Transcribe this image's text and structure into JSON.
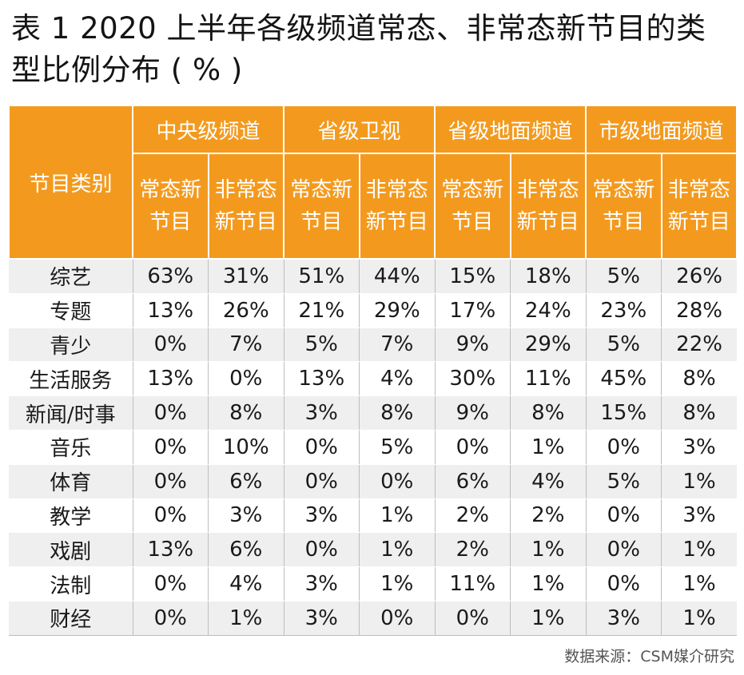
{
  "title": "表 1  2020 上半年各级频道常态、非常态新节目的类型比例分布 ( % )",
  "table": {
    "category_header": "节目类别",
    "groups": [
      "中央级频道",
      "省级卫视",
      "省级地面频道",
      "市级地面频道"
    ],
    "sub_headers": [
      "常态新节目",
      "非常态新节目"
    ],
    "rows": [
      {
        "category": "综艺",
        "values": [
          "63%",
          "31%",
          "51%",
          "44%",
          "15%",
          "18%",
          "5%",
          "26%"
        ]
      },
      {
        "category": "专题",
        "values": [
          "13%",
          "26%",
          "21%",
          "29%",
          "17%",
          "24%",
          "23%",
          "28%"
        ]
      },
      {
        "category": "青少",
        "values": [
          "0%",
          "7%",
          "5%",
          "7%",
          "9%",
          "29%",
          "5%",
          "22%"
        ]
      },
      {
        "category": "生活服务",
        "values": [
          "13%",
          "0%",
          "13%",
          "4%",
          "30%",
          "11%",
          "45%",
          "8%"
        ]
      },
      {
        "category": "新闻/时事",
        "values": [
          "0%",
          "8%",
          "3%",
          "8%",
          "9%",
          "8%",
          "15%",
          "8%"
        ]
      },
      {
        "category": "音乐",
        "values": [
          "0%",
          "10%",
          "0%",
          "5%",
          "0%",
          "1%",
          "0%",
          "3%"
        ]
      },
      {
        "category": "体育",
        "values": [
          "0%",
          "6%",
          "0%",
          "0%",
          "6%",
          "4%",
          "5%",
          "1%"
        ]
      },
      {
        "category": "教学",
        "values": [
          "0%",
          "3%",
          "3%",
          "1%",
          "2%",
          "2%",
          "0%",
          "3%"
        ]
      },
      {
        "category": "戏剧",
        "values": [
          "13%",
          "6%",
          "0%",
          "1%",
          "2%",
          "1%",
          "0%",
          "1%"
        ]
      },
      {
        "category": "法制",
        "values": [
          "0%",
          "4%",
          "3%",
          "1%",
          "11%",
          "1%",
          "0%",
          "1%"
        ]
      },
      {
        "category": "财经",
        "values": [
          "0%",
          "1%",
          "3%",
          "0%",
          "0%",
          "1%",
          "3%",
          "1%"
        ]
      }
    ]
  },
  "source": "数据来源：CSM媒介研究",
  "colors": {
    "header_bg": "#f39a1e",
    "stripe_bg": "#efefef"
  }
}
